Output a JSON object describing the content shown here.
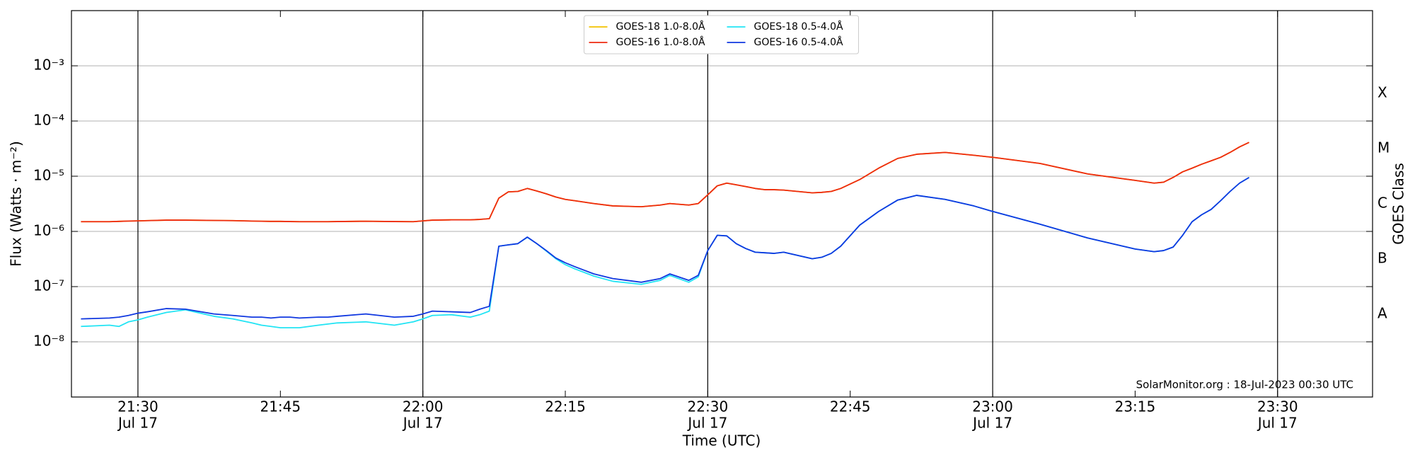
{
  "chart_data": {
    "type": "line",
    "x_label": "Time (UTC)",
    "y_label": "Flux (Watts · m⁻²)",
    "y2_label": "GOES Class",
    "annotation": "SolarMonitor.org : 18-Jul-2023 00:30 UTC",
    "log_y": true,
    "grid": true,
    "legend": "upper center",
    "x": [
      "21:24",
      "21:27",
      "21:28",
      "21:29",
      "21:30",
      "21:31",
      "21:33",
      "21:35",
      "21:38",
      "21:40",
      "21:42",
      "21:43",
      "21:44",
      "21:45",
      "21:46",
      "21:47",
      "21:49",
      "21:50",
      "21:51",
      "21:54",
      "21:57",
      "21:59",
      "22:00",
      "22:01",
      "22:03",
      "22:05",
      "22:06",
      "22:07",
      "22:08",
      "22:09",
      "22:10",
      "22:11",
      "22:12",
      "22:13",
      "22:14",
      "22:15",
      "22:16",
      "22:18",
      "22:20",
      "22:23",
      "22:25",
      "22:26",
      "22:28",
      "22:29",
      "22:30",
      "22:31",
      "22:32",
      "22:33",
      "22:34",
      "22:35",
      "22:36",
      "22:37",
      "22:38",
      "22:41",
      "22:42",
      "22:43",
      "22:44",
      "22:46",
      "22:48",
      "22:50",
      "22:52",
      "22:55",
      "22:58",
      "23:00",
      "23:05",
      "23:10",
      "23:15",
      "23:17",
      "23:18",
      "23:19",
      "23:20",
      "23:21",
      "23:22",
      "23:23",
      "23:24",
      "23:25",
      "23:26",
      "23:27"
    ],
    "xlim": [
      "21:23",
      "23:40"
    ],
    "xticks": [
      {
        "value": "21:30",
        "label": [
          "21:30",
          "Jul 17"
        ]
      },
      "21:45",
      {
        "value": "22:00",
        "label": [
          "22:00",
          "Jul 17"
        ]
      },
      "22:15",
      {
        "value": "22:30",
        "label": [
          "22:30",
          "Jul 17"
        ]
      },
      "22:45",
      {
        "value": "23:00",
        "label": [
          "23:00",
          "Jul 17"
        ]
      },
      "23:15",
      {
        "value": "23:30",
        "label": [
          "23:30",
          "Jul 17"
        ]
      }
    ],
    "ylim": [
      1e-09,
      0.01
    ],
    "yticks": [
      {
        "value": 1e-08,
        "label": "10⁻⁸"
      },
      {
        "value": 1e-07,
        "label": "10⁻⁷"
      },
      {
        "value": 1e-06,
        "label": "10⁻⁶"
      },
      {
        "value": 1e-05,
        "label": "10⁻⁵"
      },
      {
        "value": 0.0001,
        "label": "10⁻⁴"
      },
      {
        "value": 0.001,
        "label": "10⁻³"
      }
    ],
    "classes": [
      {
        "value": 3.162e-08,
        "label": "A"
      },
      {
        "value": 3.162e-07,
        "label": "B"
      },
      {
        "value": 3.162e-06,
        "label": "C"
      },
      {
        "value": 3.162e-05,
        "label": "M"
      },
      {
        "value": 0.0003162,
        "label": "X"
      }
    ],
    "series": [
      {
        "name": "GOES-18 1.0-8.0Å",
        "color": "#f2c200",
        "values": [
          1.5e-06,
          1.5e-06,
          1.52e-06,
          1.54e-06,
          1.55e-06,
          1.57e-06,
          1.6e-06,
          1.6e-06,
          1.58e-06,
          1.57e-06,
          1.54e-06,
          1.53e-06,
          1.52e-06,
          1.52e-06,
          1.51e-06,
          1.5e-06,
          1.5e-06,
          1.5e-06,
          1.51e-06,
          1.53e-06,
          1.51e-06,
          1.5e-06,
          1.55e-06,
          1.6e-06,
          1.62e-06,
          1.62e-06,
          1.65e-06,
          1.7e-06,
          4e-06,
          5.2e-06,
          5.3e-06,
          6e-06,
          5.4e-06,
          4.8e-06,
          4.2e-06,
          3.8e-06,
          3.6e-06,
          3.2e-06,
          2.9e-06,
          2.8e-06,
          3e-06,
          3.2e-06,
          3e-06,
          3.2e-06,
          4.6e-06,
          6.7e-06,
          7.5e-06,
          7e-06,
          6.5e-06,
          6e-06,
          5.7e-06,
          5.7e-06,
          5.6e-06,
          5e-06,
          5.1e-06,
          5.3e-06,
          6e-06,
          8.7e-06,
          1.4e-05,
          2.1e-05,
          2.5e-05,
          2.7e-05,
          2.4e-05,
          2.2e-05,
          1.7e-05,
          1.1e-05,
          8.4e-06,
          7.5e-06,
          7.8e-06,
          9.5e-06,
          1.2e-05,
          1.4e-05,
          1.65e-05,
          1.9e-05,
          2.2e-05,
          2.7e-05,
          3.4e-05,
          4.1e-05
        ]
      },
      {
        "name": "GOES-16 1.0-8.0Å",
        "color": "#ee2a10",
        "values": [
          1.5e-06,
          1.5e-06,
          1.52e-06,
          1.54e-06,
          1.55e-06,
          1.57e-06,
          1.6e-06,
          1.6e-06,
          1.58e-06,
          1.57e-06,
          1.54e-06,
          1.53e-06,
          1.52e-06,
          1.52e-06,
          1.51e-06,
          1.5e-06,
          1.5e-06,
          1.5e-06,
          1.51e-06,
          1.53e-06,
          1.51e-06,
          1.5e-06,
          1.55e-06,
          1.6e-06,
          1.62e-06,
          1.62e-06,
          1.65e-06,
          1.7e-06,
          4e-06,
          5.2e-06,
          5.3e-06,
          6e-06,
          5.4e-06,
          4.8e-06,
          4.2e-06,
          3.8e-06,
          3.6e-06,
          3.2e-06,
          2.9e-06,
          2.8e-06,
          3e-06,
          3.2e-06,
          3e-06,
          3.2e-06,
          4.6e-06,
          6.7e-06,
          7.5e-06,
          7e-06,
          6.5e-06,
          6e-06,
          5.7e-06,
          5.7e-06,
          5.6e-06,
          5e-06,
          5.1e-06,
          5.3e-06,
          6e-06,
          8.7e-06,
          1.4e-05,
          2.1e-05,
          2.5e-05,
          2.7e-05,
          2.4e-05,
          2.2e-05,
          1.7e-05,
          1.1e-05,
          8.4e-06,
          7.5e-06,
          7.8e-06,
          9.5e-06,
          1.2e-05,
          1.4e-05,
          1.65e-05,
          1.9e-05,
          2.2e-05,
          2.7e-05,
          3.4e-05,
          4.1e-05
        ]
      },
      {
        "name": "GOES-18 0.5-4.0Å",
        "color": "#22e4f4",
        "values": [
          1.9e-08,
          2e-08,
          1.9e-08,
          2.3e-08,
          2.5e-08,
          2.8e-08,
          3.4e-08,
          3.8e-08,
          2.9e-08,
          2.6e-08,
          2.2e-08,
          2e-08,
          1.9e-08,
          1.8e-08,
          1.8e-08,
          1.8e-08,
          2e-08,
          2.1e-08,
          2.2e-08,
          2.3e-08,
          2e-08,
          2.3e-08,
          2.6e-08,
          3e-08,
          3.1e-08,
          2.8e-08,
          3.1e-08,
          3.6e-08,
          5.4e-07,
          5.7e-07,
          6e-07,
          7.8e-07,
          6e-07,
          4.4e-07,
          3.2e-07,
          2.5e-07,
          2.1e-07,
          1.55e-07,
          1.25e-07,
          1.1e-07,
          1.3e-07,
          1.6e-07,
          1.2e-07,
          1.5e-07,
          4.5e-07,
          8.5e-07,
          8.3e-07,
          6e-07,
          4.9e-07,
          4.2e-07,
          4.1e-07,
          4e-07,
          4.2e-07,
          3.2e-07,
          3.4e-07,
          4e-07,
          5.4e-07,
          1.3e-06,
          2.3e-06,
          3.7e-06,
          4.5e-06,
          3.8e-06,
          2.9e-06,
          2.3e-06,
          1.35e-06,
          7.6e-07,
          4.8e-07,
          4.3e-07,
          4.5e-07,
          5.2e-07,
          8.5e-07,
          1.5e-06,
          2e-06,
          2.5e-06,
          3.6e-06,
          5.3e-06,
          7.5e-06,
          9.5e-06
        ]
      },
      {
        "name": "GOES-16 0.5-4.0Å",
        "color": "#1038e0",
        "values": [
          2.6e-08,
          2.7e-08,
          2.8e-08,
          3e-08,
          3.3e-08,
          3.5e-08,
          4e-08,
          3.9e-08,
          3.2e-08,
          3e-08,
          2.8e-08,
          2.8e-08,
          2.7e-08,
          2.8e-08,
          2.8e-08,
          2.7e-08,
          2.8e-08,
          2.8e-08,
          2.9e-08,
          3.2e-08,
          2.8e-08,
          2.9e-08,
          3.2e-08,
          3.6e-08,
          3.5e-08,
          3.4e-08,
          3.9e-08,
          4.4e-08,
          5.4e-07,
          5.7e-07,
          6e-07,
          7.9e-07,
          6e-07,
          4.5e-07,
          3.3e-07,
          2.7e-07,
          2.3e-07,
          1.7e-07,
          1.4e-07,
          1.2e-07,
          1.4e-07,
          1.7e-07,
          1.3e-07,
          1.6e-07,
          4.5e-07,
          8.5e-07,
          8.3e-07,
          6e-07,
          4.9e-07,
          4.2e-07,
          4.1e-07,
          4e-07,
          4.2e-07,
          3.2e-07,
          3.4e-07,
          4e-07,
          5.4e-07,
          1.3e-06,
          2.3e-06,
          3.7e-06,
          4.5e-06,
          3.8e-06,
          2.9e-06,
          2.3e-06,
          1.35e-06,
          7.6e-07,
          4.8e-07,
          4.3e-07,
          4.5e-07,
          5.2e-07,
          8.5e-07,
          1.5e-06,
          2e-06,
          2.5e-06,
          3.6e-06,
          5.3e-06,
          7.5e-06,
          9.5e-06
        ]
      }
    ]
  }
}
